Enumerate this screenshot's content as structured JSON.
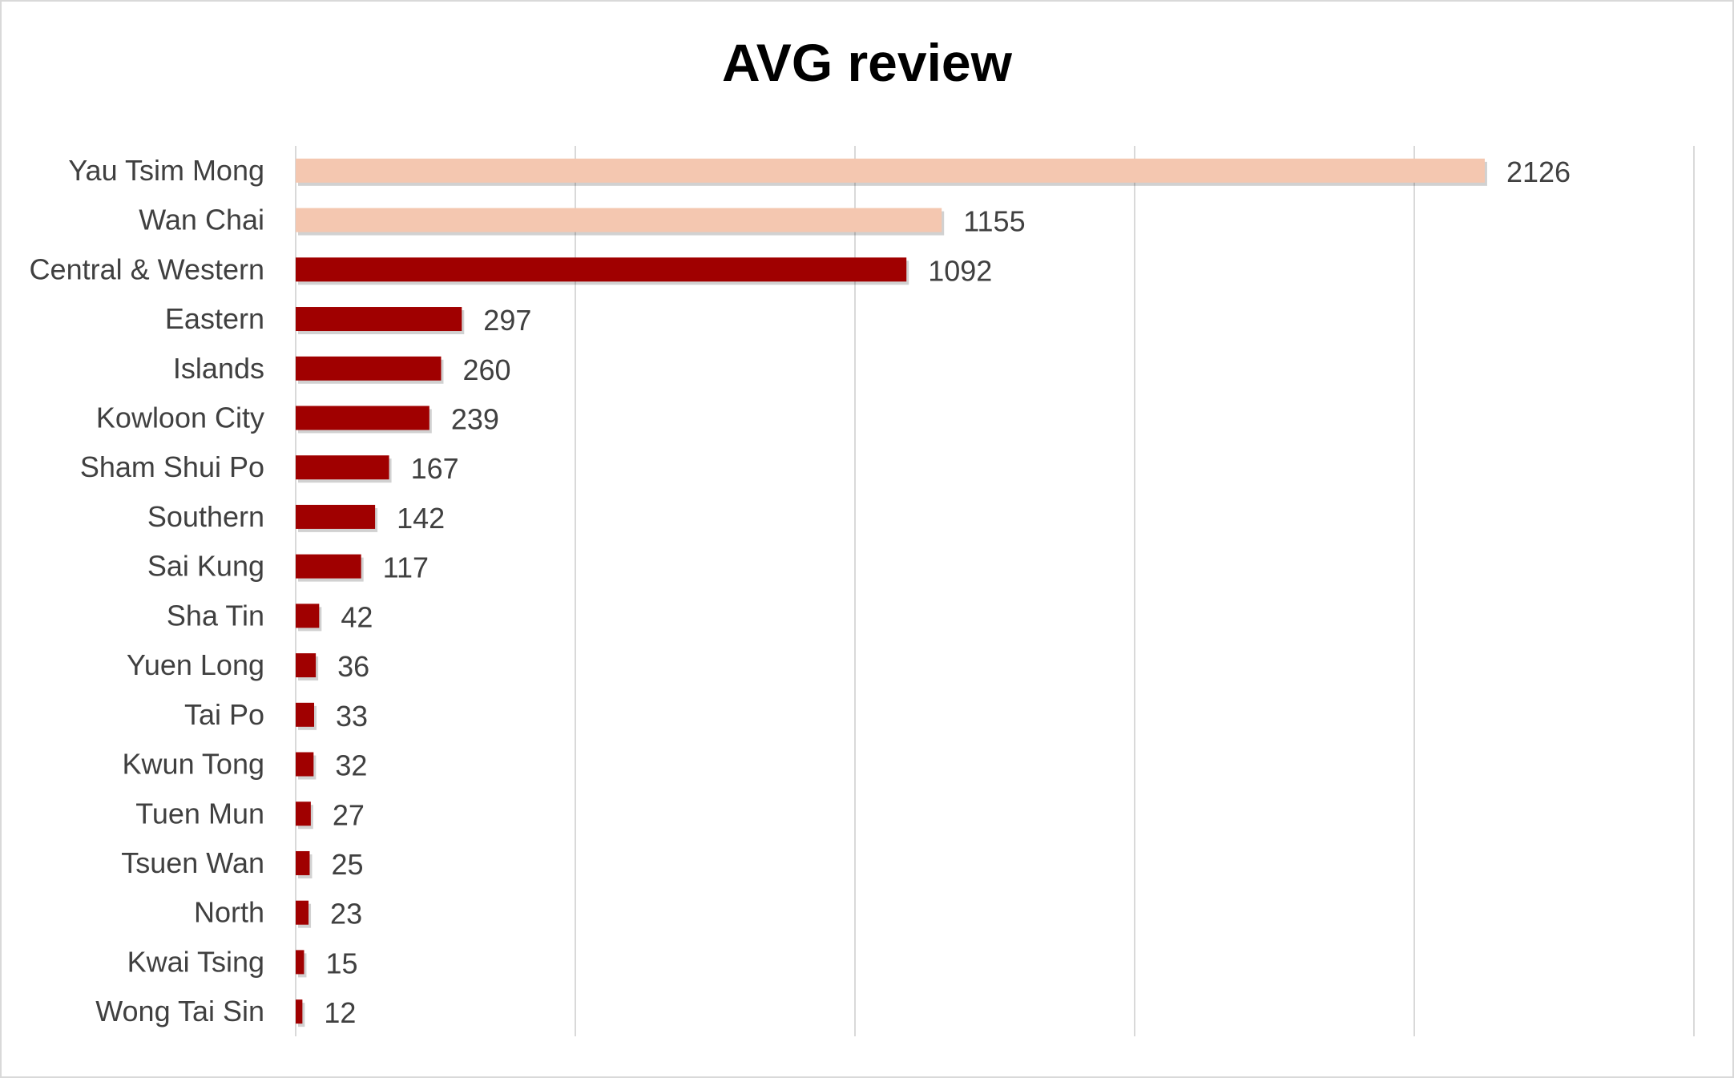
{
  "chart_data": {
    "type": "bar",
    "orientation": "horizontal",
    "title": "AVG review",
    "xlabel": "",
    "ylabel": "",
    "xlim": [
      0,
      2500
    ],
    "grid": true,
    "legend": "none",
    "data_labels": true,
    "categories": [
      "Yau Tsim Mong",
      "Wan Chai",
      "Central & Western",
      "Eastern",
      "Islands",
      "Kowloon City",
      "Sham Shui Po",
      "Southern",
      "Sai Kung",
      "Sha Tin",
      "Yuen Long",
      "Tai Po",
      "Kwun Tong",
      "Tuen Mun",
      "Tsuen Wan",
      "North",
      "Kwai Tsing",
      "Wong Tai Sin"
    ],
    "values": [
      2126,
      1155,
      1092,
      297,
      260,
      239,
      167,
      142,
      117,
      42,
      36,
      33,
      32,
      27,
      25,
      23,
      15,
      12
    ],
    "highlighted": [
      true,
      true,
      false,
      false,
      false,
      false,
      false,
      false,
      false,
      false,
      false,
      false,
      false,
      false,
      false,
      false,
      false,
      false
    ],
    "colors": {
      "highlight": "#f4c7b0",
      "default": "#a00000",
      "grid": "#d9d9d9",
      "text": "#404040"
    }
  }
}
